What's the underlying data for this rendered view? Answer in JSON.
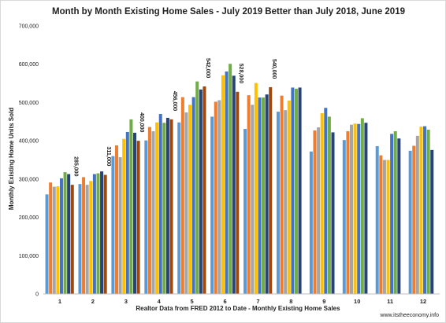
{
  "chart_data": {
    "type": "bar",
    "title": "Month by Month Existing Home Sales - July 2019 Better than July 2018, June 2019",
    "xlabel": "Realtor Data from FRED 2012 to Date - Monthly Existing Home Sales",
    "ylabel": "Monthly Existing Home Units Sold",
    "credit": "www.itstheeconomy.info",
    "ylim": [
      0,
      700000
    ],
    "yticks": [
      0,
      100000,
      200000,
      300000,
      400000,
      500000,
      600000,
      700000
    ],
    "ytick_labels": [
      "0",
      "100,000",
      "200,000",
      "300,000",
      "400,000",
      "500,000",
      "600,000",
      "700,000"
    ],
    "categories": [
      "1",
      "2",
      "3",
      "4",
      "5",
      "6",
      "7",
      "8",
      "9",
      "10",
      "11",
      "12"
    ],
    "legend": "none",
    "grid": false,
    "series": [
      {
        "color": "#5b9bd5",
        "values": [
          260000,
          287000,
          360000,
          401000,
          448000,
          463000,
          431000,
          476000,
          372000,
          402000,
          386000,
          374000
        ]
      },
      {
        "color": "#ed7d31",
        "values": [
          291000,
          305000,
          388000,
          436000,
          514000,
          502000,
          519000,
          518000,
          427000,
          425000,
          362000,
          387000
        ]
      },
      {
        "color": "#a5a5a5",
        "values": [
          280000,
          285000,
          357000,
          425000,
          474000,
          506000,
          494000,
          480000,
          435000,
          442000,
          350000,
          413000
        ]
      },
      {
        "color": "#ffc000",
        "values": [
          281000,
          295000,
          405000,
          448000,
          494000,
          571000,
          551000,
          505000,
          472000,
          445000,
          350000,
          437000
        ]
      },
      {
        "color": "#4472c4",
        "values": [
          302000,
          313000,
          423000,
          470000,
          514000,
          581000,
          513000,
          539000,
          486000,
          444000,
          418000,
          438000
        ]
      },
      {
        "color": "#70ad47",
        "values": [
          318000,
          315000,
          456000,
          447000,
          555000,
          601000,
          513000,
          536000,
          463000,
          459000,
          425000,
          429000
        ]
      },
      {
        "color": "#264478",
        "values": [
          313000,
          320000,
          421000,
          460000,
          534000,
          570000,
          521000,
          539000,
          422000,
          447000,
          406000,
          376000
        ]
      },
      {
        "color": "#9e480e",
        "values": [
          285000,
          311000,
          400000,
          456000,
          542000,
          528000,
          540000,
          null,
          null,
          null,
          null,
          null
        ]
      }
    ],
    "annotations": [
      {
        "category": "1",
        "label": "285,000"
      },
      {
        "category": "2",
        "label": "311,000"
      },
      {
        "category": "3",
        "label": "400,000"
      },
      {
        "category": "4",
        "label": "456,000"
      },
      {
        "category": "5",
        "label": "542,000"
      },
      {
        "category": "6",
        "label": "528,000"
      },
      {
        "category": "7",
        "label": "540,000"
      }
    ]
  }
}
